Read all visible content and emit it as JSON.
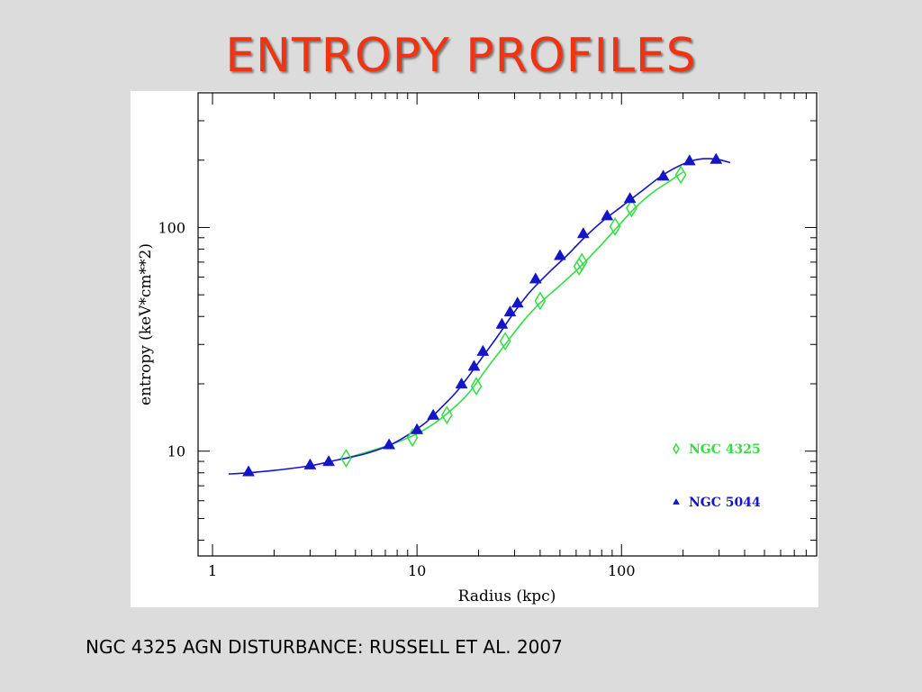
{
  "slide": {
    "title": "ENTROPY PROFILES",
    "title_color": "#ee3412",
    "caption": "NGC 4325 AGN DISTURBANCE: RUSSELL ET AL.  2007"
  },
  "chart_data": {
    "type": "scatter",
    "xlabel": "Radius (kpc)",
    "ylabel": "entropy (keV*cm**2)",
    "xscale": "log",
    "yscale": "log",
    "xlim": [
      0.85,
      900
    ],
    "ylim": [
      3.4,
      400
    ],
    "x_ticks": [
      1,
      10,
      100
    ],
    "x_tick_labels": [
      "1",
      "10",
      "100"
    ],
    "y_ticks": [
      10,
      100
    ],
    "y_tick_labels": [
      "10",
      "100"
    ],
    "grid": false,
    "legend_position": "lower-right",
    "series": [
      {
        "name": "NGC 4325",
        "marker": "diamond",
        "color": "#33dd44",
        "points": [
          [
            4.5,
            9.3
          ],
          [
            9.5,
            11.5
          ],
          [
            14,
            14.5
          ],
          [
            19.5,
            19.5
          ],
          [
            27,
            31
          ],
          [
            40,
            47
          ],
          [
            62,
            67
          ],
          [
            64,
            70
          ],
          [
            93,
            101
          ],
          [
            112,
            122
          ],
          [
            195,
            172
          ]
        ],
        "fit_curve": [
          [
            4.5,
            9.3
          ],
          [
            7,
            10.5
          ],
          [
            9.5,
            11.7
          ],
          [
            12,
            13.2
          ],
          [
            15,
            15.5
          ],
          [
            18,
            18.3
          ],
          [
            22,
            23.5
          ],
          [
            27,
            30
          ],
          [
            33,
            38
          ],
          [
            40,
            46
          ],
          [
            50,
            55
          ],
          [
            62,
            66
          ],
          [
            78,
            82
          ],
          [
            95,
            100
          ],
          [
            115,
            121
          ],
          [
            140,
            142
          ],
          [
            170,
            160
          ],
          [
            200,
            177
          ]
        ]
      },
      {
        "name": "NGC 5044",
        "marker": "triangle",
        "color": "#1515c8",
        "points": [
          [
            1.5,
            8.1
          ],
          [
            3.0,
            8.7
          ],
          [
            3.7,
            9.0
          ],
          [
            7.3,
            10.7
          ],
          [
            10,
            12.5
          ],
          [
            12,
            14.5
          ],
          [
            16.5,
            20
          ],
          [
            19,
            24
          ],
          [
            21,
            28
          ],
          [
            26,
            37
          ],
          [
            28.5,
            42
          ],
          [
            31,
            46
          ],
          [
            38,
            59
          ],
          [
            50,
            75
          ],
          [
            65,
            94
          ],
          [
            85,
            113
          ],
          [
            110,
            135
          ],
          [
            160,
            170
          ],
          [
            215,
            199
          ],
          [
            290,
            202
          ]
        ],
        "fit_curve": [
          [
            1.2,
            7.9
          ],
          [
            1.5,
            8.0
          ],
          [
            2,
            8.2
          ],
          [
            3,
            8.6
          ],
          [
            4,
            9.1
          ],
          [
            5.5,
            9.7
          ],
          [
            7.3,
            10.6
          ],
          [
            9,
            11.8
          ],
          [
            11,
            13.4
          ],
          [
            13,
            15.5
          ],
          [
            15.5,
            18.3
          ],
          [
            18,
            21.8
          ],
          [
            21,
            26.5
          ],
          [
            25,
            33
          ],
          [
            30,
            42
          ],
          [
            36,
            52
          ],
          [
            45,
            64
          ],
          [
            55,
            76
          ],
          [
            65,
            89
          ],
          [
            80,
            106
          ],
          [
            100,
            124
          ],
          [
            125,
            145
          ],
          [
            160,
            172
          ],
          [
            200,
            192
          ],
          [
            240,
            202
          ],
          [
            290,
            202
          ],
          [
            340,
            195
          ]
        ]
      }
    ]
  }
}
